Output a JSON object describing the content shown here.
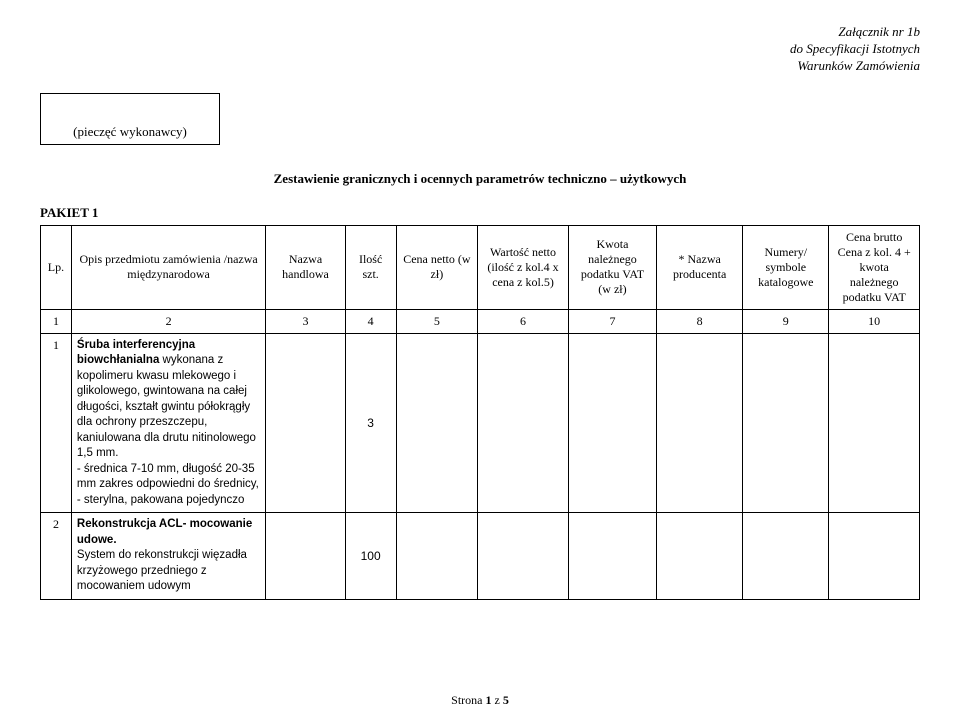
{
  "header": {
    "line1": "Załącznik nr 1b",
    "line2": "do Specyfikacji Istotnych",
    "line3": "Warunków Zamówienia"
  },
  "stamp_label": "(pieczęć wykonawcy)",
  "doc_title": "Zestawienie granicznych i ocennych parametrów techniczno – użytkowych",
  "pakiet": "PAKIET 1",
  "columns": {
    "c1": "Lp.",
    "c2": "Opis przedmiotu zamówienia /nazwa międzynarodowa",
    "c3": "Nazwa handlowa",
    "c4": "Ilość szt.",
    "c5": "Cena netto (w zł)",
    "c6": "Wartość netto (ilość z kol.4 x cena z kol.5)",
    "c7": "Kwota należnego podatku VAT (w zł)",
    "c8": "* Nazwa producenta",
    "c9": "Numery/ symbole katalogowe",
    "c10": "Cena brutto Cena z kol. 4 + kwota należnego podatku VAT"
  },
  "num_row": {
    "n1": "1",
    "n2": "2",
    "n3": "3",
    "n4": "4",
    "n5": "5",
    "n6": "6",
    "n7": "7",
    "n8": "8",
    "n9": "9",
    "n10": "10"
  },
  "rows": [
    {
      "lp": "1",
      "title": "Śruba interferencyjna biowchłanialna",
      "body": " wykonana z kopolimeru kwasu mlekowego i glikolowego, gwintowana na całej długości, kształt gwintu półokrągły dla ochrony przeszczepu, kaniulowana dla drutu nitinolowego 1,5 mm.\n- średnica 7-10 mm, długość 20-35 mm zakres odpowiedni do średnicy,\n- sterylna, pakowana pojedynczo",
      "qty": "3"
    },
    {
      "lp": "2",
      "title": "Rekonstrukcja ACL- mocowanie udowe.",
      "body": "\nSystem do rekonstrukcji więzadła krzyżowego przedniego z mocowaniem udowym",
      "qty": "100"
    }
  ],
  "footer": {
    "prefix": "Strona ",
    "page": "1",
    "of_word": " z ",
    "total": "5"
  }
}
